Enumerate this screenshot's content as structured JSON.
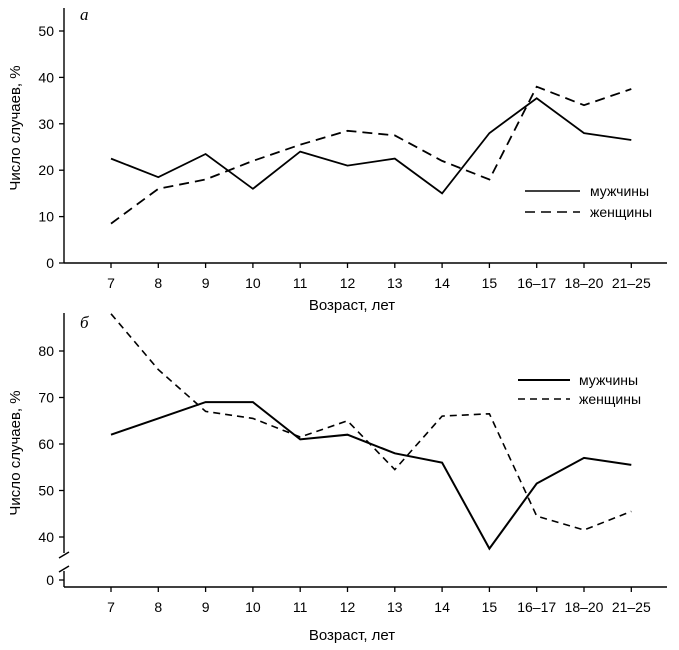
{
  "chart_data": [
    {
      "type": "line",
      "panel_label": "а",
      "xlabel": "Возраст, лет",
      "ylabel": "Число случаев, %",
      "categories": [
        "7",
        "8",
        "9",
        "10",
        "11",
        "12",
        "13",
        "14",
        "15",
        "16–17",
        "18–20",
        "21–25"
      ],
      "yticks": [
        0,
        10,
        20,
        30,
        40,
        50
      ],
      "ylim": [
        0,
        55
      ],
      "legend_position": "right",
      "series": [
        {
          "name": "мужчины",
          "style": "solid",
          "values": [
            22.5,
            18.5,
            23.5,
            16,
            24,
            21,
            22.5,
            15,
            28,
            35.5,
            28,
            26.5
          ]
        },
        {
          "name": "женщины",
          "style": "dashed",
          "values": [
            8.5,
            16,
            18,
            22,
            25.5,
            28.5,
            27.5,
            22,
            18,
            38,
            34,
            37.5
          ]
        }
      ]
    },
    {
      "type": "line",
      "panel_label": "б",
      "xlabel": "Возраст, лет",
      "ylabel": "Число случаев, %",
      "categories": [
        "7",
        "8",
        "9",
        "10",
        "11",
        "12",
        "13",
        "14",
        "15",
        "16–17",
        "18–20",
        "21–25"
      ],
      "yticks": [
        0,
        40,
        50,
        60,
        70,
        80
      ],
      "ylim": [
        35,
        89
      ],
      "axis_break": true,
      "legend_position": "top-right",
      "series": [
        {
          "name": "мужчины",
          "style": "solid",
          "values": [
            62,
            65.5,
            69,
            69,
            61,
            62,
            58,
            56,
            37.5,
            51.5,
            57,
            55.5
          ]
        },
        {
          "name": "женщины",
          "style": "dashed",
          "values": [
            88,
            76,
            67,
            65.5,
            61.5,
            65,
            54.5,
            66,
            66.5,
            44.5,
            41.5,
            45.5
          ]
        }
      ]
    }
  ]
}
